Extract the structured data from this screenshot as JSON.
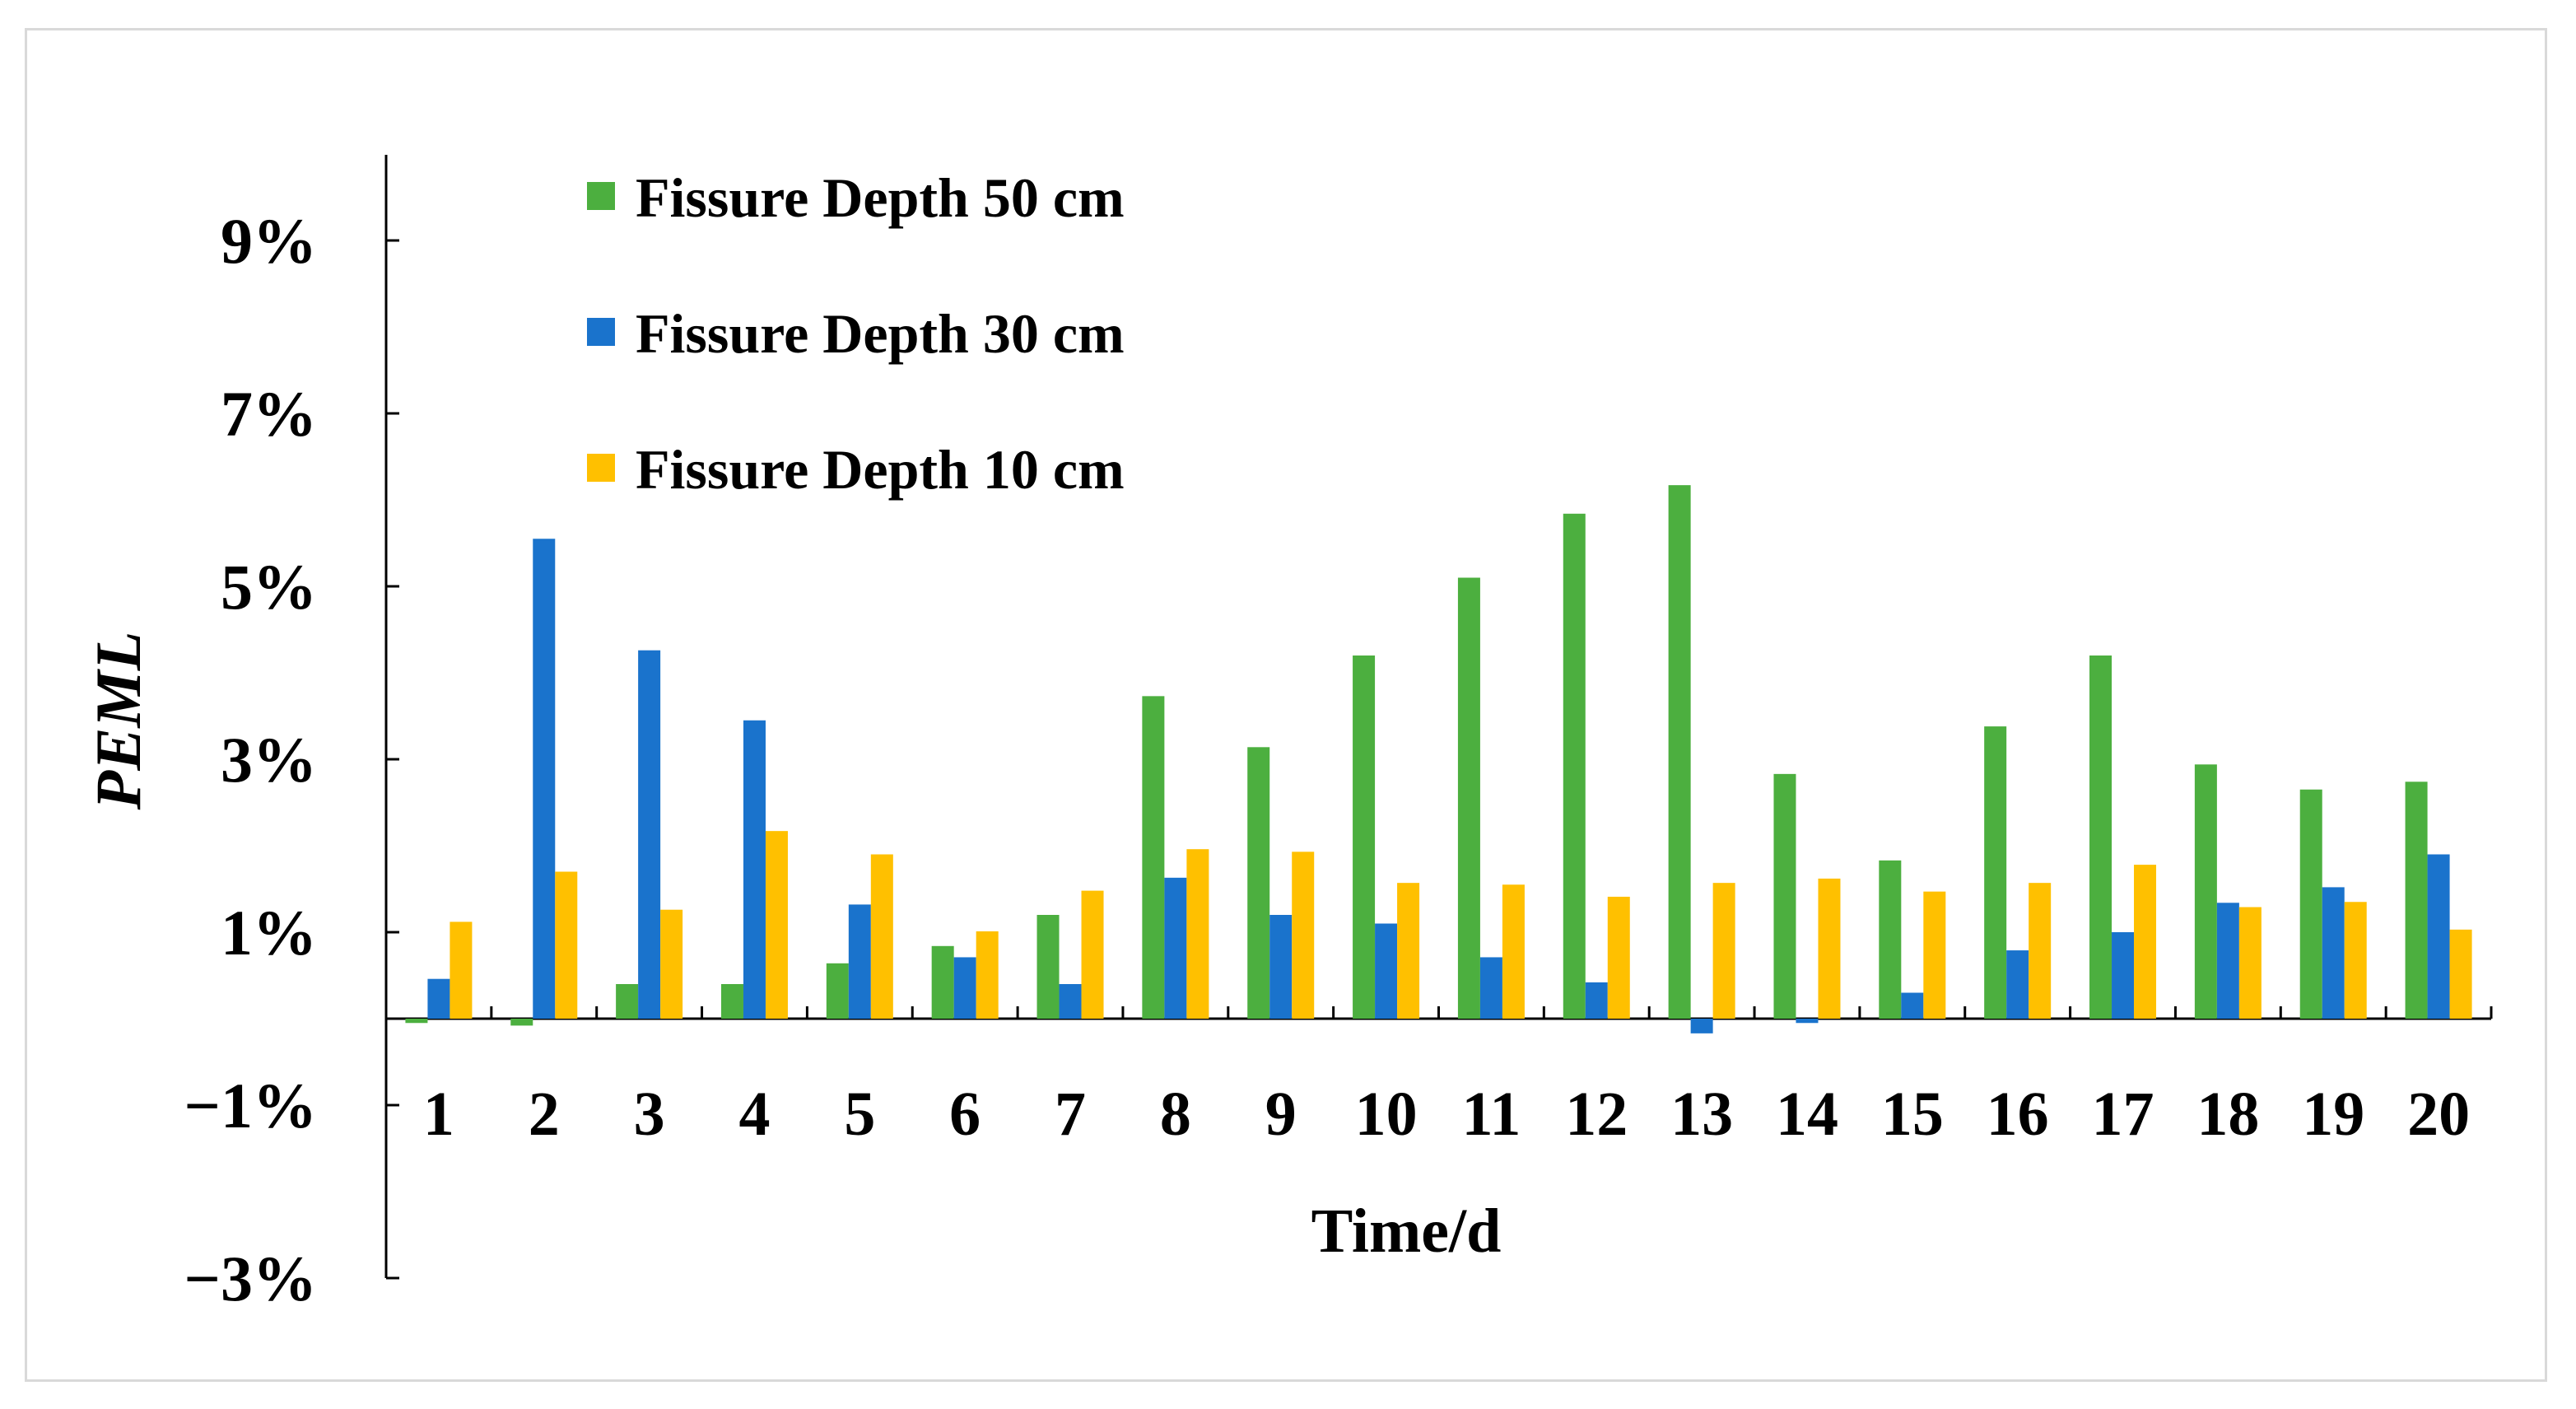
{
  "chart_data": {
    "type": "bar",
    "title": "",
    "xlabel": "Time/d",
    "ylabel": "PEML",
    "ylim": [
      -3,
      10
    ],
    "yticks": [
      9,
      7,
      5,
      3,
      1,
      -1,
      -3
    ],
    "ytick_labels": [
      "9%",
      "7%",
      "5%",
      "3%",
      "1%",
      "−1%",
      "−3%"
    ],
    "categories": [
      "1",
      "2",
      "3",
      "4",
      "5",
      "6",
      "7",
      "8",
      "9",
      "10",
      "11",
      "12",
      "13",
      "14",
      "15",
      "16",
      "17",
      "18",
      "19",
      "20"
    ],
    "series": [
      {
        "name": "Fissure Depth 50 cm",
        "color": "#4caf3f",
        "values": [
          -0.05,
          -0.08,
          0.4,
          0.4,
          0.64,
          0.84,
          1.2,
          3.73,
          3.14,
          4.2,
          5.1,
          5.84,
          6.17,
          2.83,
          1.83,
          3.38,
          4.2,
          2.94,
          2.65,
          2.74
        ]
      },
      {
        "name": "Fissure Depth 30 cm",
        "color": "#1a73cc",
        "values": [
          0.46,
          5.55,
          4.26,
          3.45,
          1.32,
          0.71,
          0.4,
          1.63,
          1.2,
          1.1,
          0.71,
          0.42,
          -0.17,
          -0.05,
          0.3,
          0.79,
          1.0,
          1.34,
          1.52,
          1.9
        ]
      },
      {
        "name": "Fissure Depth 10 cm",
        "color": "#ffc000",
        "values": [
          1.12,
          1.7,
          1.26,
          2.17,
          1.9,
          1.01,
          1.48,
          1.96,
          1.93,
          1.57,
          1.55,
          1.41,
          1.57,
          1.62,
          1.47,
          1.57,
          1.78,
          1.29,
          1.35,
          1.03
        ]
      }
    ],
    "legend_position": "top-left",
    "grid": false
  }
}
